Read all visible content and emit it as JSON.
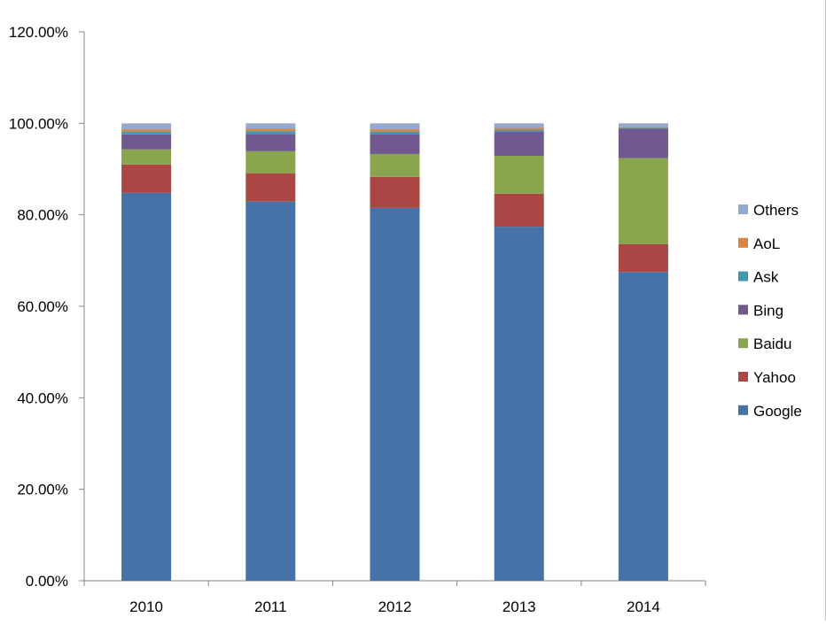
{
  "chart_data": {
    "type": "bar",
    "stacked": true,
    "categories": [
      "2010",
      "2011",
      "2012",
      "2013",
      "2014"
    ],
    "series": [
      {
        "name": "Google",
        "color": "#4572A7",
        "values": [
          84.8,
          82.9,
          81.5,
          77.4,
          67.5
        ]
      },
      {
        "name": "Yahoo",
        "color": "#AA4643",
        "values": [
          6.2,
          6.2,
          6.8,
          7.2,
          6.1
        ]
      },
      {
        "name": "Baidu",
        "color": "#89A54E",
        "values": [
          3.3,
          4.8,
          5.0,
          8.3,
          18.8
        ]
      },
      {
        "name": "Bing",
        "color": "#71588F",
        "values": [
          3.3,
          3.8,
          4.4,
          5.3,
          6.4
        ]
      },
      {
        "name": "Ask",
        "color": "#4198AF",
        "values": [
          0.6,
          0.6,
          0.5,
          0.4,
          0.2
        ]
      },
      {
        "name": "AoL",
        "color": "#DB843D",
        "values": [
          0.5,
          0.5,
          0.5,
          0.4,
          0.1
        ]
      },
      {
        "name": "Others",
        "color": "#93A9CF",
        "values": [
          1.3,
          1.2,
          1.3,
          1.0,
          0.9
        ]
      }
    ],
    "y_ticks": [
      "0.00%",
      "20.00%",
      "40.00%",
      "60.00%",
      "80.00%",
      "100.00%",
      "120.00%"
    ],
    "ylim": [
      0,
      120
    ],
    "title": "",
    "xlabel": "",
    "ylabel": "",
    "grid": false,
    "legend_position": "right",
    "legend_order": [
      "Others",
      "AoL",
      "Ask",
      "Bing",
      "Baidu",
      "Yahoo",
      "Google"
    ]
  }
}
